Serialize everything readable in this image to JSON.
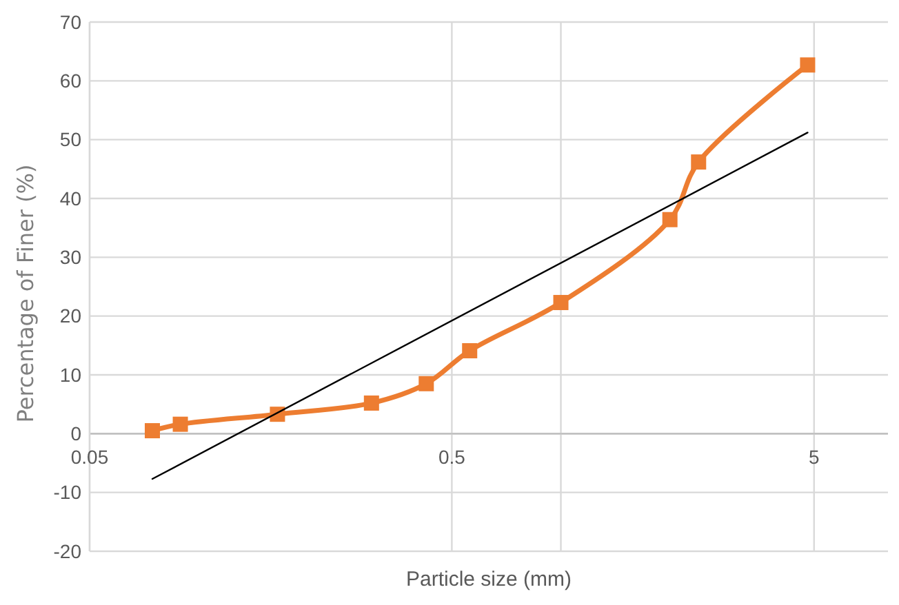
{
  "chart_data": {
    "type": "line",
    "xlabel": "Particle size (mm)",
    "ylabel": "Percentage of Finer (%)",
    "log": "x",
    "xlim": [
      0.05,
      8
    ],
    "xticks": [
      0.05,
      0.5,
      {
        "value": 1,
        "label": null
      },
      5
    ],
    "ylim": [
      -20,
      70
    ],
    "yticks": [
      -20,
      -10,
      0,
      10,
      20,
      30,
      40,
      50,
      60,
      70
    ],
    "grid": true,
    "series": [
      {
        "color": "#ed7d31",
        "marker": "square",
        "x": [
          0.0745,
          0.089,
          0.165,
          0.3,
          0.425,
          0.56,
          1.0,
          2.0,
          2.4,
          4.8
        ],
        "values": [
          0.5,
          1.6,
          3.3,
          5.2,
          8.5,
          14.1,
          22.3,
          36.4,
          46.2,
          62.7
        ]
      },
      {
        "type": "line",
        "color": "#000000",
        "marker": "none",
        "x": [
          0.0745,
          4.8
        ],
        "values": [
          -7.7,
          51.2
        ]
      }
    ]
  }
}
